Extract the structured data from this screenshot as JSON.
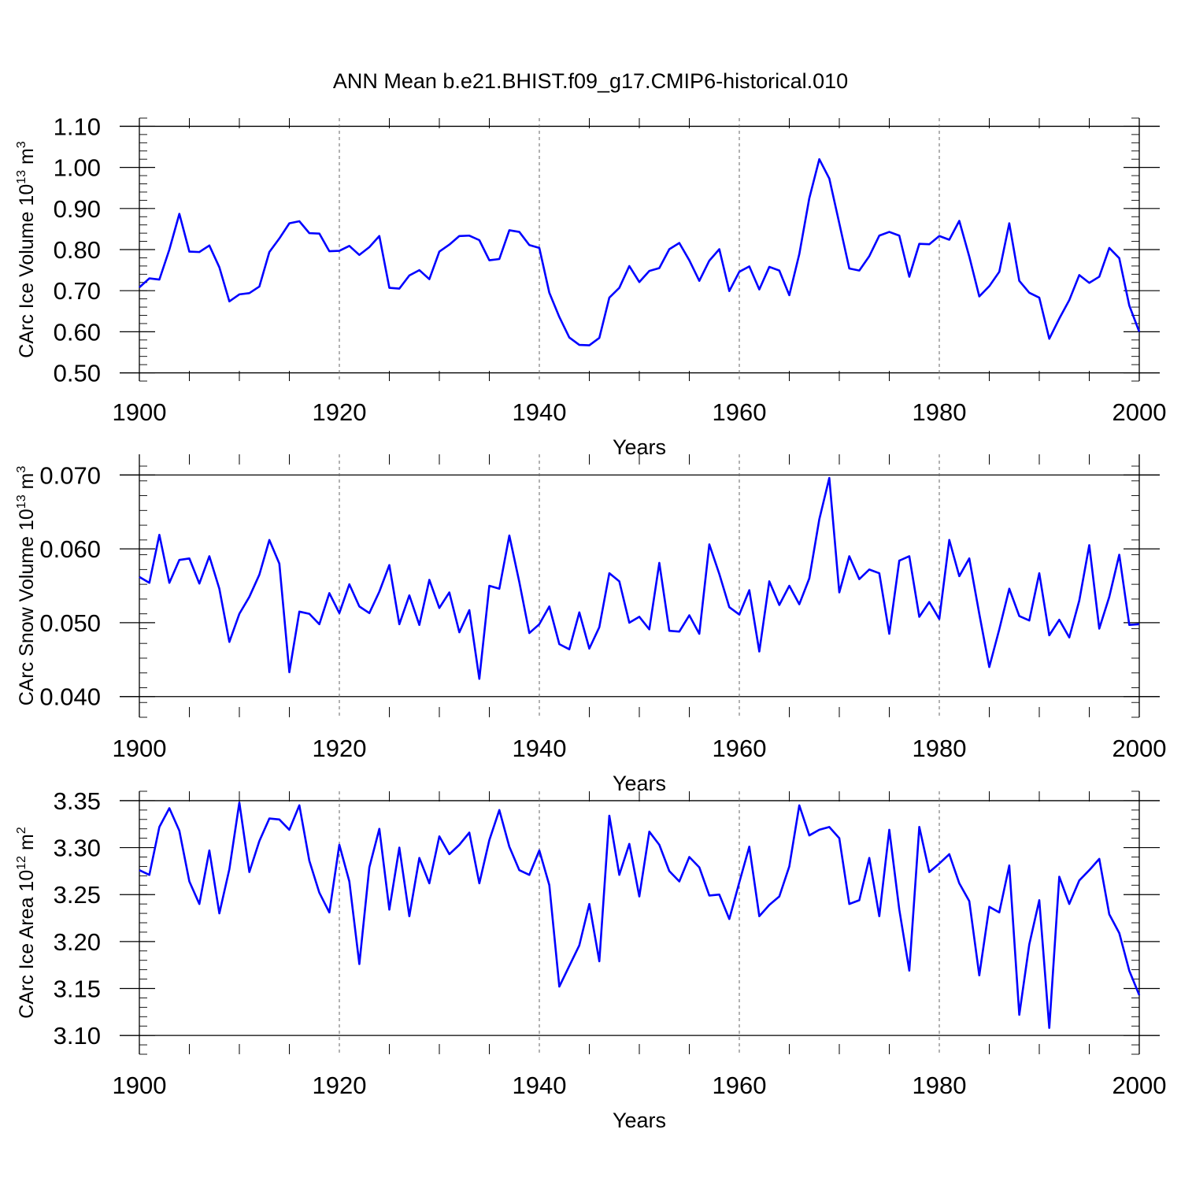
{
  "title": "ANN Mean b.e21.BHIST.f09_g17.CMIP6-historical.010",
  "chart_data": [
    {
      "type": "line",
      "ylabel_prefix": "CArc Ice Volume 10",
      "ylabel_exp": "13",
      "ylabel_unit": " m",
      "ylabel_unit_exp": "3",
      "xlabel": "Years",
      "xlim": [
        1900,
        2000
      ],
      "ylim": [
        0.48,
        1.12
      ],
      "xticks": [
        1900,
        1920,
        1940,
        1960,
        1980,
        2000
      ],
      "yticks": [
        0.5,
        0.6,
        0.7,
        0.8,
        0.9,
        1.0,
        1.1
      ],
      "ytick_labels": [
        "0.50",
        "0.60",
        "0.70",
        "0.80",
        "0.90",
        "1.00",
        "1.10"
      ],
      "color": "#0000ff",
      "x_start": 1900,
      "values": [
        0.708,
        0.73,
        0.727,
        0.8,
        0.887,
        0.795,
        0.794,
        0.81,
        0.757,
        0.674,
        0.691,
        0.694,
        0.71,
        0.794,
        0.827,
        0.864,
        0.869,
        0.84,
        0.839,
        0.796,
        0.797,
        0.809,
        0.787,
        0.806,
        0.833,
        0.707,
        0.705,
        0.737,
        0.75,
        0.728,
        0.795,
        0.812,
        0.833,
        0.834,
        0.823,
        0.774,
        0.777,
        0.847,
        0.843,
        0.811,
        0.804,
        0.695,
        0.636,
        0.586,
        0.568,
        0.567,
        0.585,
        0.683,
        0.707,
        0.76,
        0.721,
        0.748,
        0.755,
        0.801,
        0.816,
        0.774,
        0.724,
        0.773,
        0.801,
        0.699,
        0.746,
        0.759,
        0.703,
        0.758,
        0.749,
        0.689,
        0.789,
        0.925,
        1.02,
        0.973,
        0.864,
        0.754,
        0.749,
        0.784,
        0.834,
        0.843,
        0.834,
        0.734,
        0.814,
        0.813,
        0.833,
        0.824,
        0.87,
        0.783,
        0.686,
        0.711,
        0.746,
        0.864,
        0.724,
        0.695,
        0.683,
        0.583,
        0.632,
        0.677,
        0.738,
        0.719,
        0.734,
        0.804,
        0.779,
        0.664,
        0.6
      ]
    },
    {
      "type": "line",
      "ylabel_prefix": "CArc Snow Volume 10",
      "ylabel_exp": "13",
      "ylabel_unit": " m",
      "ylabel_unit_exp": "3",
      "xlabel": "Years",
      "xlim": [
        1900,
        2000
      ],
      "ylim": [
        0.0372,
        0.0728
      ],
      "xticks": [
        1900,
        1920,
        1940,
        1960,
        1980,
        2000
      ],
      "yticks": [
        0.04,
        0.05,
        0.06,
        0.07
      ],
      "ytick_labels": [
        "0.040",
        "0.050",
        "0.060",
        "0.070"
      ],
      "color": "#0000ff",
      "x_start": 1900,
      "values": [
        0.0562,
        0.0554,
        0.0619,
        0.0554,
        0.0585,
        0.0587,
        0.0553,
        0.059,
        0.0546,
        0.0474,
        0.0512,
        0.0535,
        0.0565,
        0.0612,
        0.058,
        0.0433,
        0.0515,
        0.0512,
        0.0498,
        0.054,
        0.0513,
        0.0552,
        0.0522,
        0.0513,
        0.0542,
        0.0578,
        0.0498,
        0.0537,
        0.0497,
        0.0558,
        0.052,
        0.0541,
        0.0487,
        0.0517,
        0.0424,
        0.055,
        0.0546,
        0.0618,
        0.0555,
        0.0486,
        0.0498,
        0.0522,
        0.0471,
        0.0464,
        0.0514,
        0.0465,
        0.0494,
        0.0567,
        0.0556,
        0.05,
        0.0508,
        0.0491,
        0.0581,
        0.0489,
        0.0488,
        0.051,
        0.0485,
        0.0606,
        0.0566,
        0.0521,
        0.0511,
        0.0544,
        0.0461,
        0.0556,
        0.0524,
        0.055,
        0.0525,
        0.056,
        0.064,
        0.0696,
        0.0541,
        0.059,
        0.0559,
        0.0572,
        0.0567,
        0.0485,
        0.0584,
        0.059,
        0.0508,
        0.0528,
        0.0505,
        0.0612,
        0.0563,
        0.0587,
        0.0512,
        0.044,
        0.0491,
        0.0546,
        0.0509,
        0.0503,
        0.0567,
        0.0483,
        0.0504,
        0.048,
        0.053,
        0.0605,
        0.0492,
        0.0535,
        0.0592,
        0.0497,
        0.0498
      ]
    },
    {
      "type": "line",
      "ylabel_prefix": "CArc Ice Area 10",
      "ylabel_exp": "12",
      "ylabel_unit": " m",
      "ylabel_unit_exp": "2",
      "xlabel": "Years",
      "xlim": [
        1900,
        2000
      ],
      "ylim": [
        3.08,
        3.36
      ],
      "xticks": [
        1900,
        1920,
        1940,
        1960,
        1980,
        2000
      ],
      "yticks": [
        3.1,
        3.15,
        3.2,
        3.25,
        3.3,
        3.35
      ],
      "ytick_labels": [
        "3.10",
        "3.15",
        "3.20",
        "3.25",
        "3.30",
        "3.35"
      ],
      "color": "#0000ff",
      "x_start": 1900,
      "values": [
        3.276,
        3.271,
        3.322,
        3.342,
        3.318,
        3.264,
        3.24,
        3.297,
        3.23,
        3.277,
        3.348,
        3.274,
        3.307,
        3.331,
        3.33,
        3.319,
        3.345,
        3.286,
        3.252,
        3.231,
        3.303,
        3.264,
        3.176,
        3.279,
        3.32,
        3.234,
        3.3,
        3.227,
        3.289,
        3.262,
        3.312,
        3.293,
        3.303,
        3.316,
        3.262,
        3.308,
        3.34,
        3.301,
        3.276,
        3.271,
        3.297,
        3.26,
        3.152,
        3.174,
        3.196,
        3.24,
        3.179,
        3.334,
        3.271,
        3.304,
        3.248,
        3.317,
        3.303,
        3.275,
        3.264,
        3.29,
        3.279,
        3.249,
        3.25,
        3.224,
        3.263,
        3.301,
        3.227,
        3.239,
        3.248,
        3.28,
        3.345,
        3.313,
        3.319,
        3.322,
        3.31,
        3.24,
        3.244,
        3.289,
        3.227,
        3.319,
        3.234,
        3.169,
        3.322,
        3.274,
        3.283,
        3.293,
        3.262,
        3.243,
        3.164,
        3.237,
        3.231,
        3.281,
        3.122,
        3.197,
        3.244,
        3.108,
        3.269,
        3.24,
        3.265,
        3.276,
        3.288,
        3.229,
        3.209,
        3.169,
        3.143
      ]
    }
  ]
}
